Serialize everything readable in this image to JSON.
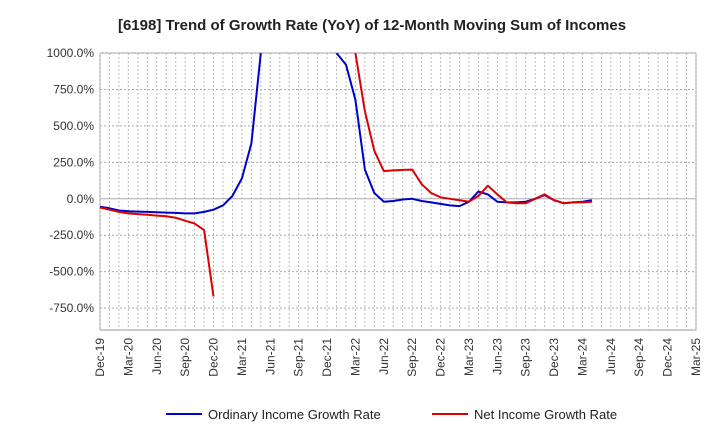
{
  "chart_data": {
    "type": "line",
    "title": "[6198]  Trend of Growth Rate (YoY) of 12-Month Moving Sum of Incomes",
    "xlabel": "",
    "ylabel": "",
    "ylim": [
      -900,
      1000
    ],
    "y_ticks": [
      1000,
      750,
      500,
      250,
      0,
      -250,
      -500,
      -750
    ],
    "y_tick_labels": [
      "1000.0%",
      "750.0%",
      "500.0%",
      "250.0%",
      "0.0%",
      "-250.0%",
      "-500.0%",
      "-750.0%"
    ],
    "x_tick_labels": [
      "Dec-19",
      "Mar-20",
      "Jun-20",
      "Sep-20",
      "Dec-20",
      "Mar-21",
      "Jun-21",
      "Sep-21",
      "Dec-21",
      "Mar-22",
      "Jun-22",
      "Sep-22",
      "Dec-22",
      "Mar-23",
      "Jun-23",
      "Sep-23",
      "Dec-23",
      "Mar-24",
      "Jun-24",
      "Sep-24",
      "Dec-24",
      "Mar-25"
    ],
    "grid": true,
    "legend_position": "bottom",
    "series": [
      {
        "name": "Ordinary Income Growth Rate",
        "color": "#0000cc",
        "points": [
          [
            0,
            -55
          ],
          [
            1,
            -65
          ],
          [
            2,
            -80
          ],
          [
            3,
            -85
          ],
          [
            4,
            -88
          ],
          [
            5,
            -90
          ],
          [
            6,
            -92
          ],
          [
            7,
            -95
          ],
          [
            8,
            -97
          ],
          [
            9,
            -100
          ],
          [
            10,
            -100
          ],
          [
            11,
            -90
          ],
          [
            12,
            -75
          ],
          [
            13,
            -45
          ],
          [
            14,
            20
          ],
          [
            15,
            140
          ],
          [
            16,
            380
          ],
          [
            17,
            1000
          ],
          [
            null,
            null
          ],
          [
            25,
            1000
          ],
          [
            26,
            920
          ],
          [
            27,
            680
          ],
          [
            28,
            200
          ],
          [
            29,
            40
          ],
          [
            30,
            -20
          ],
          [
            31,
            -15
          ],
          [
            32,
            -5
          ],
          [
            33,
            0
          ],
          [
            34,
            -15
          ],
          [
            35,
            -25
          ],
          [
            36,
            -35
          ],
          [
            37,
            -45
          ],
          [
            38,
            -50
          ],
          [
            39,
            -20
          ],
          [
            40,
            50
          ],
          [
            41,
            30
          ],
          [
            42,
            -20
          ],
          [
            43,
            -25
          ],
          [
            44,
            -25
          ],
          [
            45,
            -20
          ],
          [
            46,
            0
          ],
          [
            47,
            25
          ],
          [
            48,
            -10
          ],
          [
            49,
            -30
          ],
          [
            50,
            -25
          ],
          [
            51,
            -20
          ],
          [
            52,
            -10
          ]
        ]
      },
      {
        "name": "Net Income Growth Rate",
        "color": "#dd0000",
        "points": [
          [
            0,
            -60
          ],
          [
            1,
            -75
          ],
          [
            2,
            -90
          ],
          [
            3,
            -100
          ],
          [
            4,
            -105
          ],
          [
            5,
            -110
          ],
          [
            6,
            -115
          ],
          [
            7,
            -120
          ],
          [
            8,
            -130
          ],
          [
            9,
            -150
          ],
          [
            10,
            -170
          ],
          [
            11,
            -215
          ],
          [
            12,
            -670
          ],
          [
            null,
            null
          ],
          [
            27,
            1000
          ],
          [
            28,
            600
          ],
          [
            29,
            330
          ],
          [
            30,
            190
          ],
          [
            31,
            195
          ],
          [
            32,
            198
          ],
          [
            33,
            200
          ],
          [
            34,
            100
          ],
          [
            35,
            40
          ],
          [
            36,
            10
          ],
          [
            37,
            0
          ],
          [
            38,
            -10
          ],
          [
            39,
            -20
          ],
          [
            40,
            20
          ],
          [
            41,
            90
          ],
          [
            42,
            30
          ],
          [
            43,
            -25
          ],
          [
            44,
            -30
          ],
          [
            45,
            -30
          ],
          [
            46,
            0
          ],
          [
            47,
            30
          ],
          [
            48,
            -10
          ],
          [
            49,
            -30
          ],
          [
            50,
            -25
          ],
          [
            51,
            -25
          ],
          [
            52,
            -20
          ]
        ]
      }
    ]
  }
}
